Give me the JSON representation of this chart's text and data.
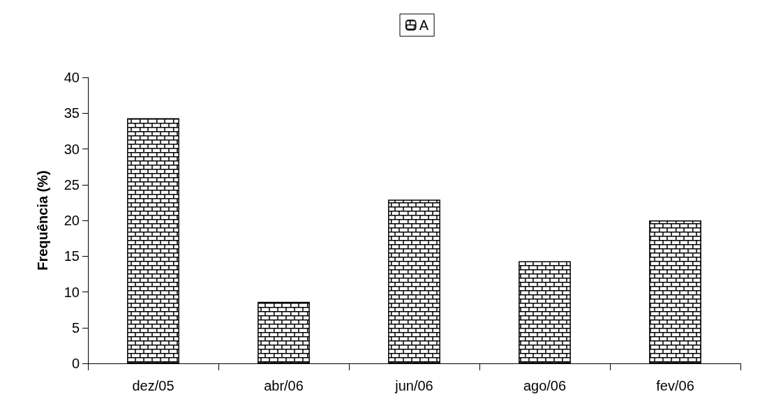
{
  "chart_data": {
    "type": "bar",
    "ylabel": "Frequência (%)",
    "categories": [
      "dez/05",
      "abr/06",
      "jun/06",
      "ago/06",
      "fev/06"
    ],
    "series": [
      {
        "name": "A",
        "color": "#000000",
        "values": [
          34.3,
          8.6,
          22.9,
          14.3,
          20.0
        ]
      }
    ],
    "ylim": [
      0,
      40
    ],
    "yticks": [
      0,
      5,
      10,
      15,
      20,
      25,
      30,
      35,
      40
    ],
    "grid": false,
    "legend": "top"
  }
}
